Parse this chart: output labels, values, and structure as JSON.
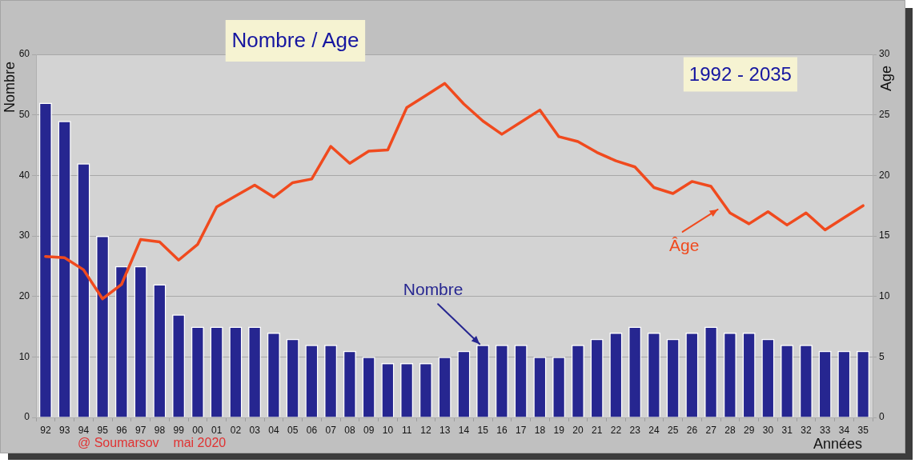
{
  "chart_data": {
    "type": "bar",
    "title": "Nombre / Age",
    "subtitle": "1992 - 2035",
    "xlabel": "Années",
    "ylabel": "Nombre",
    "y2label": "Age",
    "categories": [
      "92",
      "93",
      "94",
      "95",
      "96",
      "97",
      "98",
      "99",
      "00",
      "01",
      "02",
      "03",
      "04",
      "05",
      "06",
      "07",
      "08",
      "09",
      "10",
      "11",
      "12",
      "13",
      "14",
      "15",
      "16",
      "17",
      "18",
      "19",
      "20",
      "21",
      "22",
      "23",
      "24",
      "25",
      "26",
      "27",
      "28",
      "29",
      "30",
      "31",
      "32",
      "33",
      "34",
      "35"
    ],
    "series": [
      {
        "name": "Nombre",
        "color": "#262690",
        "values": [
          52,
          49,
          42,
          30,
          25,
          25,
          22,
          17,
          15,
          15,
          15,
          15,
          14,
          13,
          12,
          12,
          11,
          10,
          9,
          9,
          9,
          10,
          11,
          12,
          12,
          12,
          10,
          10,
          12,
          13,
          14,
          15,
          14,
          13,
          14,
          15,
          14,
          14,
          13,
          12,
          12,
          11,
          11,
          11
        ]
      },
      {
        "name": "Âge",
        "type": "line",
        "axis": "y2",
        "color": "#f04a1e",
        "values": [
          13.3,
          13.2,
          12.2,
          9.8,
          11.0,
          14.7,
          14.5,
          13.0,
          14.3,
          17.4,
          18.3,
          19.2,
          18.2,
          19.4,
          19.7,
          22.4,
          21.0,
          22.0,
          22.1,
          25.6,
          26.6,
          27.6,
          25.9,
          24.5,
          23.4,
          24.4,
          25.4,
          23.2,
          22.8,
          21.9,
          21.2,
          20.7,
          19.0,
          18.5,
          19.5,
          19.1,
          16.9,
          16.0,
          17.0,
          15.9,
          16.9,
          15.5,
          16.5,
          17.5
        ]
      }
    ],
    "ylim": [
      0,
      60
    ],
    "yticks": [
      0,
      10,
      20,
      30,
      40,
      50,
      60
    ],
    "y2lim": [
      0,
      30
    ],
    "y2ticks": [
      0,
      5,
      10,
      15,
      20,
      25,
      30
    ],
    "grid": "y",
    "annotations": [
      "@ Soumarsov    mai 2020"
    ]
  }
}
